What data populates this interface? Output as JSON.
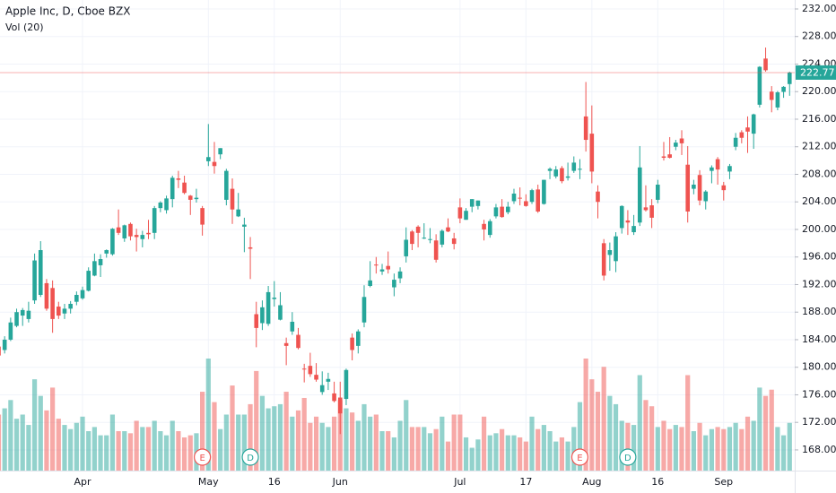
{
  "chart_data": {
    "type": "candlestick",
    "title": "Apple Inc, D, Cboe BZX",
    "volume_label": "Vol (20)",
    "up_color": "#26a69a",
    "down_color": "#ef5350",
    "grid": true,
    "last_price": 222.77,
    "ylim": [
      165,
      233.3
    ],
    "yticks": [
      {
        "value": 168,
        "label": "168.00"
      },
      {
        "value": 172,
        "label": "172.00"
      },
      {
        "value": 176,
        "label": "176.00"
      },
      {
        "value": 180,
        "label": "180.00"
      },
      {
        "value": 184,
        "label": "184.00"
      },
      {
        "value": 188,
        "label": "188.00"
      },
      {
        "value": 192,
        "label": "192.00"
      },
      {
        "value": 196,
        "label": "196.00"
      },
      {
        "value": 200,
        "label": "200.00"
      },
      {
        "value": 204,
        "label": "204.00"
      },
      {
        "value": 208,
        "label": "208.00"
      },
      {
        "value": 212,
        "label": "212.00"
      },
      {
        "value": 216,
        "label": "216.00"
      },
      {
        "value": 220,
        "label": "220.00"
      },
      {
        "value": 224,
        "label": "224.00"
      },
      {
        "value": 228,
        "label": "228.00"
      },
      {
        "value": 232,
        "label": "232.00"
      }
    ],
    "categories": [
      null,
      null,
      null,
      null,
      null,
      null,
      null,
      null,
      null,
      null,
      null,
      null,
      null,
      null,
      "Apr",
      null,
      null,
      null,
      null,
      null,
      null,
      null,
      null,
      null,
      null,
      null,
      null,
      null,
      null,
      null,
      null,
      null,
      null,
      null,
      null,
      "May",
      null,
      null,
      null,
      null,
      null,
      null,
      null,
      null,
      null,
      null,
      "16",
      null,
      null,
      null,
      null,
      null,
      null,
      null,
      null,
      null,
      null,
      "Jun",
      null,
      null,
      null,
      null,
      null,
      null,
      null,
      null,
      null,
      null,
      null,
      null,
      null,
      null,
      null,
      null,
      null,
      null,
      null,
      "Jul",
      null,
      null,
      null,
      null,
      null,
      null,
      null,
      null,
      null,
      null,
      "17",
      null,
      null,
      null,
      null,
      null,
      null,
      null,
      null,
      null,
      null,
      "Aug",
      null,
      null,
      null,
      null,
      null,
      null,
      null,
      null,
      null,
      null,
      "16",
      null,
      null,
      null,
      null,
      null,
      null,
      null,
      null,
      null,
      null,
      "Sep",
      null,
      null,
      null,
      null,
      null,
      null,
      null,
      null,
      null,
      null,
      null
    ],
    "markers": [
      null,
      null,
      null,
      null,
      null,
      null,
      null,
      null,
      null,
      null,
      null,
      null,
      null,
      null,
      null,
      null,
      null,
      null,
      null,
      null,
      null,
      null,
      null,
      null,
      null,
      null,
      null,
      null,
      null,
      null,
      null,
      null,
      null,
      null,
      "E",
      null,
      null,
      null,
      null,
      null,
      null,
      null,
      "D",
      null,
      null,
      null,
      null,
      null,
      null,
      null,
      null,
      null,
      null,
      null,
      null,
      null,
      null,
      null,
      null,
      null,
      null,
      null,
      null,
      null,
      null,
      null,
      null,
      null,
      null,
      null,
      null,
      null,
      null,
      null,
      null,
      null,
      null,
      null,
      null,
      null,
      null,
      null,
      null,
      null,
      null,
      null,
      null,
      null,
      null,
      null,
      null,
      null,
      null,
      null,
      null,
      null,
      null,
      "E",
      null,
      null,
      null,
      null,
      null,
      null,
      null,
      "D",
      null,
      null,
      null,
      null,
      null,
      null,
      null,
      null,
      null,
      null,
      null,
      null,
      null,
      null,
      null,
      null,
      null,
      null,
      null,
      null,
      null,
      null,
      null,
      null,
      null,
      null,
      null
    ],
    "marker_colors": {
      "E": "#ef5350",
      "D": "#26a69a"
    },
    "ohlc": [
      [
        183.0,
        184.2,
        181.2,
        181.7
      ],
      [
        182.5,
        184.5,
        182.0,
        184.0
      ],
      [
        184.0,
        187.2,
        183.8,
        186.5
      ],
      [
        186.0,
        188.5,
        185.8,
        188.0
      ],
      [
        187.5,
        188.6,
        186.0,
        188.3
      ],
      [
        187.0,
        189.5,
        186.5,
        188.2
      ],
      [
        189.7,
        196.5,
        189.2,
        195.5
      ],
      [
        190.5,
        198.3,
        190.2,
        197.0
      ],
      [
        192.2,
        192.8,
        188.2,
        188.5
      ],
      [
        191.5,
        192.6,
        185.0,
        187.0
      ],
      [
        188.8,
        189.5,
        187.0,
        187.5
      ],
      [
        187.8,
        189.2,
        187.0,
        188.5
      ],
      [
        188.5,
        189.6,
        187.8,
        189.2
      ],
      [
        189.5,
        191.0,
        189.0,
        190.5
      ],
      [
        190.0,
        191.7,
        189.8,
        191.2
      ],
      [
        191.1,
        194.5,
        191.0,
        194.0
      ],
      [
        193.3,
        196.5,
        193.2,
        195.4
      ],
      [
        194.8,
        196.4,
        193.1,
        195.7
      ],
      [
        196.5,
        197.1,
        195.9,
        197.0
      ],
      [
        196.4,
        200.2,
        196.2,
        200.1
      ],
      [
        200.3,
        202.9,
        199.2,
        199.5
      ],
      [
        198.7,
        200.7,
        198.2,
        200.6
      ],
      [
        200.8,
        201.0,
        198.4,
        199.0
      ],
      [
        199.2,
        200.1,
        196.8,
        198.9
      ],
      [
        198.6,
        199.8,
        197.4,
        199.2
      ],
      [
        199.5,
        201.4,
        198.6,
        199.3
      ],
      [
        199.5,
        203.4,
        198.6,
        203.1
      ],
      [
        203.1,
        204.1,
        202.5,
        203.9
      ],
      [
        202.8,
        204.9,
        202.3,
        204.5
      ],
      [
        204.4,
        207.8,
        203.2,
        207.5
      ],
      [
        207.4,
        208.5,
        206.0,
        207.2
      ],
      [
        206.8,
        207.8,
        205.1,
        205.3
      ],
      [
        204.9,
        205.0,
        202.1,
        204.3
      ],
      [
        204.4,
        205.9,
        203.9,
        204.6
      ],
      [
        203.1,
        203.4,
        199.1,
        200.7
      ],
      [
        209.9,
        215.3,
        209.2,
        210.5
      ],
      [
        209.8,
        212.7,
        208.1,
        209.2
      ],
      [
        210.9,
        211.8,
        210.2,
        211.8
      ],
      [
        204.3,
        208.8,
        203.5,
        208.5
      ],
      [
        205.9,
        207.4,
        200.8,
        202.9
      ],
      [
        201.9,
        205.3,
        201.8,
        202.9
      ],
      [
        200.4,
        201.7,
        196.7,
        200.7
      ],
      [
        197.4,
        198.9,
        192.8,
        197.2
      ],
      [
        187.7,
        189.5,
        182.9,
        185.7
      ],
      [
        186.4,
        189.7,
        185.4,
        188.7
      ],
      [
        186.3,
        191.8,
        186.0,
        190.9
      ],
      [
        189.9,
        192.5,
        188.8,
        190.1
      ],
      [
        186.9,
        190.9,
        186.8,
        189.0
      ],
      [
        183.5,
        184.3,
        180.3,
        183.1
      ],
      [
        185.2,
        188.0,
        184.7,
        186.6
      ],
      [
        184.7,
        185.7,
        182.6,
        182.8
      ],
      [
        179.8,
        180.5,
        177.8,
        179.7
      ],
      [
        180.2,
        182.1,
        178.6,
        179.0
      ],
      [
        178.9,
        180.6,
        177.9,
        178.2
      ],
      [
        176.4,
        179.4,
        176.0,
        177.4
      ],
      [
        177.9,
        179.2,
        176.7,
        178.3
      ],
      [
        176.2,
        177.9,
        174.9,
        175.1
      ],
      [
        175.6,
        177.9,
        170.3,
        173.3
      ],
      [
        175.4,
        179.8,
        174.5,
        179.6
      ],
      [
        184.3,
        184.9,
        181.0,
        182.5
      ],
      [
        183.1,
        185.5,
        182.0,
        185.2
      ],
      [
        186.5,
        191.9,
        185.8,
        190.2
      ],
      [
        191.8,
        195.4,
        191.6,
        192.6
      ],
      [
        194.9,
        196.0,
        193.6,
        194.8
      ],
      [
        193.9,
        195.0,
        193.4,
        194.2
      ],
      [
        194.7,
        196.8,
        193.6,
        194.2
      ],
      [
        191.6,
        193.6,
        190.3,
        192.7
      ],
      [
        192.9,
        194.5,
        192.2,
        193.9
      ],
      [
        196.1,
        200.3,
        195.2,
        198.5
      ],
      [
        199.7,
        199.9,
        197.0,
        197.9
      ],
      [
        200.4,
        200.6,
        197.4,
        199.5
      ],
      [
        198.8,
        200.9,
        198.6,
        198.8
      ],
      [
        198.5,
        200.2,
        198.0,
        198.6
      ],
      [
        198.4,
        199.3,
        195.2,
        195.6
      ],
      [
        197.8,
        200.0,
        197.4,
        199.8
      ],
      [
        200.3,
        201.6,
        199.6,
        199.7
      ],
      [
        198.7,
        199.5,
        197.1,
        197.9
      ],
      [
        203.2,
        204.5,
        200.9,
        201.6
      ],
      [
        201.4,
        203.1,
        201.4,
        202.7
      ],
      [
        203.3,
        204.4,
        202.5,
        204.4
      ],
      [
        203.4,
        204.2,
        202.9,
        204.2
      ],
      [
        200.8,
        201.4,
        198.4,
        200.0
      ],
      [
        199.2,
        201.5,
        198.8,
        201.2
      ],
      [
        201.9,
        203.7,
        201.6,
        203.2
      ],
      [
        203.3,
        204.4,
        201.7,
        201.8
      ],
      [
        202.5,
        204.0,
        202.2,
        203.3
      ],
      [
        204.1,
        205.9,
        203.7,
        205.2
      ],
      [
        204.6,
        206.1,
        203.5,
        204.5
      ],
      [
        204.1,
        205.1,
        203.3,
        203.4
      ],
      [
        204.0,
        205.9,
        203.7,
        205.7
      ],
      [
        205.8,
        206.5,
        202.4,
        202.6
      ],
      [
        203.7,
        207.2,
        203.6,
        207.2
      ],
      [
        208.5,
        209.0,
        207.3,
        208.8
      ],
      [
        207.7,
        209.2,
        207.4,
        208.7
      ],
      [
        208.9,
        209.2,
        206.7,
        207.0
      ],
      [
        207.5,
        209.7,
        207.1,
        207.7
      ],
      [
        208.5,
        210.6,
        208.2,
        209.7
      ],
      [
        208.8,
        210.2,
        207.3,
        208.8
      ],
      [
        216.4,
        221.4,
        211.3,
        213.0
      ],
      [
        213.9,
        218.0,
        206.7,
        208.4
      ],
      [
        205.5,
        206.4,
        201.6,
        204.0
      ],
      [
        198.0,
        198.6,
        192.6,
        193.3
      ],
      [
        196.3,
        198.1,
        194.0,
        197.0
      ],
      [
        195.4,
        199.6,
        193.8,
        199.0
      ],
      [
        200.2,
        203.5,
        199.4,
        203.4
      ],
      [
        201.3,
        202.8,
        199.2,
        201.0
      ],
      [
        199.6,
        202.1,
        199.2,
        200.5
      ],
      [
        201.0,
        212.1,
        200.5,
        209.0
      ],
      [
        203.2,
        206.4,
        202.6,
        202.8
      ],
      [
        203.5,
        204.4,
        200.2,
        201.7
      ],
      [
        204.3,
        207.2,
        203.8,
        206.5
      ],
      [
        210.6,
        212.7,
        210.0,
        210.4
      ],
      [
        210.9,
        213.4,
        210.3,
        210.4
      ],
      [
        212.0,
        213.0,
        211.5,
        212.6
      ],
      [
        213.2,
        214.4,
        210.8,
        212.5
      ],
      [
        209.4,
        212.1,
        201.0,
        202.6
      ],
      [
        205.9,
        207.2,
        205.1,
        206.5
      ],
      [
        207.9,
        208.6,
        203.5,
        204.2
      ],
      [
        204.1,
        205.7,
        202.9,
        205.5
      ],
      [
        208.5,
        209.3,
        206.7,
        209.0
      ],
      [
        210.2,
        210.5,
        206.5,
        208.7
      ],
      [
        206.4,
        206.9,
        204.2,
        205.7
      ],
      [
        208.4,
        209.5,
        207.3,
        209.2
      ],
      [
        212.0,
        214.0,
        211.5,
        213.3
      ],
      [
        214.1,
        214.4,
        212.5,
        213.3
      ],
      [
        214.8,
        216.4,
        211.1,
        214.2
      ],
      [
        213.9,
        216.8,
        211.7,
        216.7
      ],
      [
        218.1,
        223.7,
        217.7,
        223.6
      ],
      [
        224.8,
        226.4,
        222.9,
        223.1
      ],
      [
        220.0,
        220.8,
        217.0,
        218.8
      ],
      [
        217.7,
        220.1,
        217.3,
        219.9
      ],
      [
        219.96,
        220.8,
        219.1,
        220.7
      ],
      [
        221.1,
        222.9,
        219.4,
        222.77
      ]
    ],
    "volume": [
      27,
      30,
      34,
      25,
      27,
      22,
      44,
      36,
      29,
      40,
      25,
      22,
      20,
      23,
      26,
      19,
      21,
      17,
      17,
      27,
      19,
      19,
      18,
      24,
      21,
      21,
      24,
      19,
      17,
      24,
      19,
      16,
      17,
      18,
      38,
      54,
      33,
      20,
      27,
      41,
      27,
      27,
      32,
      48,
      36,
      30,
      31,
      32,
      38,
      26,
      29,
      35,
      23,
      26,
      23,
      21,
      26,
      34,
      30,
      28,
      24,
      32,
      26,
      27,
      19,
      19,
      16,
      24,
      34,
      21,
      21,
      21,
      18,
      20,
      26,
      14,
      27,
      27,
      16,
      11,
      15,
      26,
      17,
      18,
      20,
      17,
      17,
      16,
      14,
      26,
      20,
      22,
      19,
      14,
      16,
      14,
      21,
      33,
      54,
      44,
      38,
      50,
      36,
      32,
      24,
      23,
      22,
      46,
      34,
      31,
      21,
      24,
      20,
      22,
      21,
      46,
      19,
      23,
      17,
      20,
      21,
      20,
      21,
      23,
      20,
      26,
      24,
      40,
      36,
      39,
      21,
      17,
      23
    ]
  }
}
